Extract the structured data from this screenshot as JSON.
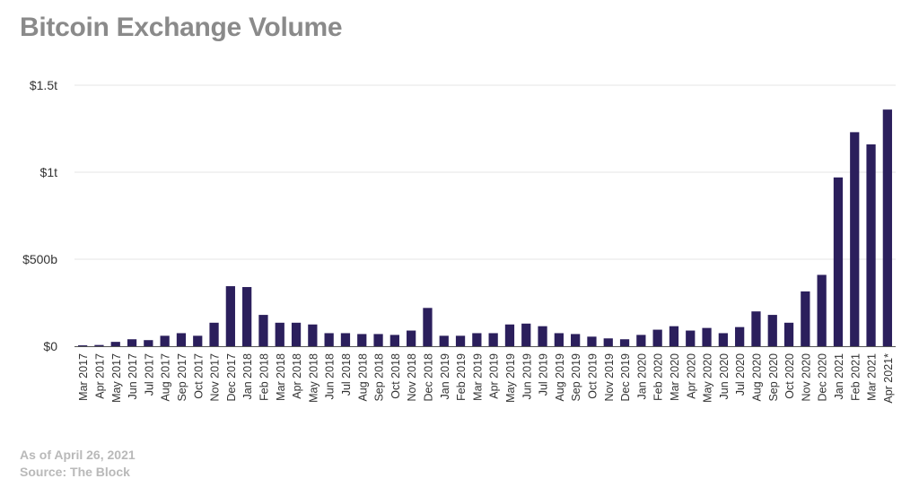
{
  "title": "Bitcoin Exchange Volume",
  "note": "As of April 26, 2021",
  "source": "Source: The Block",
  "colors": {
    "bar": "#2b1f5c",
    "grid": "#e6e6e6",
    "text": "#333333"
  },
  "chart_data": {
    "type": "bar",
    "title": "Bitcoin Exchange Volume",
    "xlabel": "",
    "ylabel": "",
    "ylim": [
      0,
      1.5
    ],
    "units": "trillions USD",
    "yticks": [
      {
        "value": 0,
        "label": "$0"
      },
      {
        "value": 0.5,
        "label": "$500b"
      },
      {
        "value": 1.0,
        "label": "$1t"
      },
      {
        "value": 1.5,
        "label": "$1.5t"
      }
    ],
    "grid": true,
    "legend": "none",
    "categories": [
      "Mar 2017",
      "Apr 2017",
      "May 2017",
      "Jun 2017",
      "Jul 2017",
      "Aug 2017",
      "Sep 2017",
      "Oct 2017",
      "Nov 2017",
      "Dec 2017",
      "Jan 2018",
      "Feb 2018",
      "Mar 2018",
      "Apr 2018",
      "May 2018",
      "Jun 2018",
      "Jul 2018",
      "Aug 2018",
      "Sep 2018",
      "Oct 2018",
      "Nov 2018",
      "Dec 2018",
      "Jan 2019",
      "Feb 2019",
      "Mar 2019",
      "Apr 2019",
      "May 2019",
      "Jun 2019",
      "Jul 2019",
      "Aug 2019",
      "Sep 2019",
      "Oct 2019",
      "Nov 2019",
      "Dec 2019",
      "Jan 2020",
      "Feb 2020",
      "Mar 2020",
      "Apr 2020",
      "May 2020",
      "Jun 2020",
      "Jul 2020",
      "Aug 2020",
      "Sep 2020",
      "Oct 2020",
      "Nov 2020",
      "Dec 2020",
      "Jan 2021",
      "Feb 2021",
      "Mar 2021",
      "Apr 2021*"
    ],
    "values": [
      0.005,
      0.007,
      0.025,
      0.04,
      0.035,
      0.06,
      0.075,
      0.06,
      0.135,
      0.345,
      0.34,
      0.18,
      0.135,
      0.135,
      0.125,
      0.075,
      0.075,
      0.07,
      0.07,
      0.065,
      0.09,
      0.22,
      0.06,
      0.06,
      0.075,
      0.075,
      0.125,
      0.13,
      0.115,
      0.075,
      0.07,
      0.055,
      0.045,
      0.04,
      0.065,
      0.095,
      0.115,
      0.09,
      0.105,
      0.075,
      0.11,
      0.2,
      0.18,
      0.135,
      0.315,
      0.41,
      0.97,
      1.23,
      1.16,
      1.36
    ]
  }
}
